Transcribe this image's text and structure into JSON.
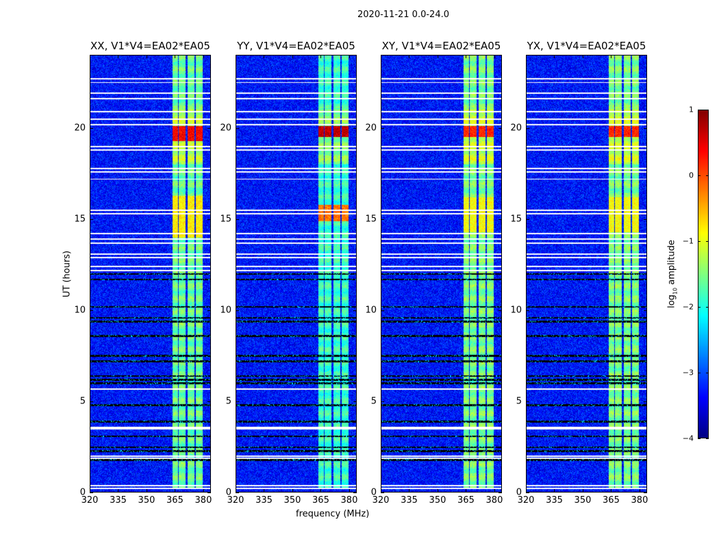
{
  "suptitle": "2020-11-21 0.0-24.0",
  "chart_data": {
    "type": "heatmap",
    "title": "2020-11-21 0.0-24.0",
    "xlabel": "frequency (MHz)",
    "ylabel": "UT (hours)",
    "xlim": [
      320,
      384
    ],
    "ylim": [
      0,
      24
    ],
    "xticks": [
      320,
      335,
      350,
      365,
      380
    ],
    "yticks": [
      0,
      5,
      10,
      15,
      20
    ],
    "colorbar": {
      "label_prefix": "log",
      "label_sub": "10",
      "label_suffix": " amplitude",
      "range": [
        -4,
        1
      ],
      "ticks": [
        1,
        0,
        -1,
        -2,
        -3,
        -4
      ],
      "tick_labels": [
        "1",
        "0",
        "−1",
        "−2",
        "−3",
        "−4"
      ],
      "colormap": "jet"
    },
    "panels": [
      {
        "title": "XX, V1*V4=EA02*EA05",
        "band_boost": 1.0,
        "burst_hours": [
          [
            19.3,
            20.1,
            0.0
          ],
          [
            14.0,
            16.3,
            -0.8
          ]
        ]
      },
      {
        "title": "YY, V1*V4=EA02*EA05",
        "band_boost": 1.15,
        "burst_hours": [
          [
            19.5,
            20.1,
            0.3
          ],
          [
            14.9,
            15.8,
            -0.2
          ]
        ]
      },
      {
        "title": "XY, V1*V4=EA02*EA05",
        "band_boost": 0.95,
        "burst_hours": [
          [
            19.5,
            20.1,
            -0.2
          ],
          [
            14.3,
            16.2,
            -0.9
          ]
        ]
      },
      {
        "title": "YX, V1*V4=EA02*EA05",
        "band_boost": 0.95,
        "burst_hours": [
          [
            19.5,
            20.1,
            -0.2
          ],
          [
            14.3,
            16.2,
            -0.9
          ]
        ]
      }
    ],
    "background_level": -3.3,
    "rfi_subbands_mhz": [
      [
        363.5,
        366.5
      ],
      [
        367,
        370.5
      ],
      [
        371.5,
        375
      ],
      [
        376,
        379.5
      ]
    ],
    "rfi_level": -1.6,
    "flagged_hours": [
      22.7,
      22.5,
      21.9,
      21.6,
      20.9,
      20.5,
      20.2,
      19.0,
      18.8,
      17.8,
      17.6,
      17.2,
      15.5,
      15.3,
      14.2,
      13.9,
      13.7,
      13.1,
      12.9,
      12.4,
      12.2,
      5.7,
      3.6,
      3.5,
      2.0,
      1.9,
      0.4,
      0.25
    ],
    "dark_hours": [
      12.0,
      11.7,
      10.2,
      9.6,
      9.4,
      8.6,
      7.5,
      7.2,
      6.4,
      6.2,
      6.0,
      4.8,
      3.9,
      3.1,
      2.5,
      2.3,
      1.8
    ]
  }
}
